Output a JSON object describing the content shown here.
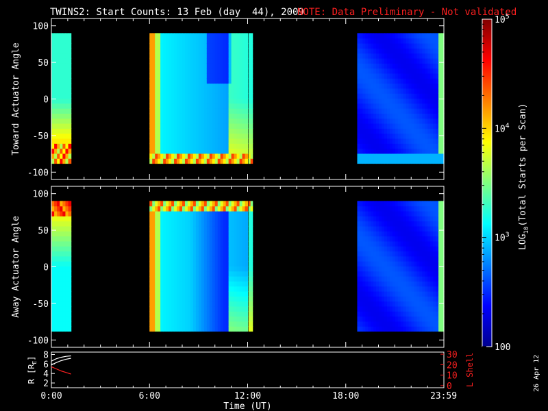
{
  "title": "TWINS2: Start Counts: 13 Feb (day  44), 2009",
  "note": "NOTE: Data Preliminary - Not validated",
  "date_stamp": "26 Apr 12",
  "colors": {
    "note": "#ff2020",
    "lshell": "#ff2020",
    "frame": "#ffffff"
  },
  "chart_data": [
    {
      "type": "heatmap",
      "ylabel": "Toward Actuator Angle",
      "xlabel": "",
      "ylim": [
        -110,
        110
      ],
      "y_ticks": [
        "100",
        "50",
        "0",
        "-50",
        "-100"
      ],
      "y_tick_values": [
        100,
        50,
        0,
        -50,
        -100
      ],
      "x_range_hours": [
        0,
        24
      ],
      "data_intervals_ut": [
        [
          0.0,
          1.2
        ],
        [
          6.0,
          12.0
        ],
        [
          12.05,
          12.3
        ],
        [
          18.7,
          24.0
        ]
      ],
      "angle_range": [
        -88,
        90
      ]
    },
    {
      "type": "heatmap",
      "ylabel": "Away Actuator Angle",
      "xlabel": "",
      "ylim": [
        -110,
        110
      ],
      "y_ticks": [
        "100",
        "50",
        "0",
        "-50",
        "-100"
      ],
      "y_tick_values": [
        100,
        50,
        0,
        -50,
        -100
      ],
      "x_range_hours": [
        0,
        24
      ],
      "data_intervals_ut": [
        [
          0.0,
          1.2
        ],
        [
          6.0,
          12.0
        ],
        [
          12.05,
          12.3
        ],
        [
          18.7,
          24.0
        ]
      ],
      "angle_range": [
        -88,
        90
      ]
    },
    {
      "type": "line",
      "ylabel": "R [R",
      "ylabel_sub": "E",
      "ylabel_end": "]",
      "y2label": "L Shell",
      "xlabel": "Time (UT)",
      "y_ticks": [
        "8",
        "6",
        "4",
        "2"
      ],
      "y_tick_values": [
        8,
        6,
        4,
        2
      ],
      "ylim": [
        1,
        8.5
      ],
      "y2_ticks": [
        "30",
        "20",
        "10",
        "0"
      ],
      "y2_tick_values": [
        30,
        20,
        10,
        0
      ],
      "y2lim": [
        -2,
        32
      ],
      "x_ticks": [
        "0:00",
        "6:00",
        "12:00",
        "18:00",
        "23:59"
      ],
      "x_tick_values": [
        0,
        6,
        12,
        18,
        23.98
      ],
      "series": [
        {
          "axis": "left",
          "color": "#ffffff",
          "x": [
            0.0,
            0.3,
            0.6,
            0.9,
            1.2
          ],
          "y": [
            6.6,
            7.1,
            7.4,
            7.6,
            7.7
          ]
        },
        {
          "axis": "left",
          "color": "#ffffff",
          "x": [
            0.0,
            0.3,
            0.6,
            0.9,
            1.2
          ],
          "y": [
            5.8,
            6.3,
            6.7,
            7.0,
            7.2
          ]
        },
        {
          "axis": "right",
          "color": "#ff2020",
          "x": [
            0.0,
            0.3,
            0.6,
            0.9,
            1.2
          ],
          "y": [
            18,
            16,
            14,
            12.5,
            11
          ]
        }
      ]
    }
  ],
  "colorbar": {
    "label": "LOG",
    "label_sub": "10",
    "label_end": "(Total Starts per Scan)",
    "scale": "log",
    "range": [
      100,
      100000
    ],
    "ticks": [
      {
        "base": "10",
        "exp": "5",
        "value": 100000
      },
      {
        "base": "10",
        "exp": "4",
        "value": 10000
      },
      {
        "base": "10",
        "exp": "3",
        "value": 1000
      },
      {
        "base": "100",
        "exp": "",
        "value": 100
      }
    ]
  }
}
